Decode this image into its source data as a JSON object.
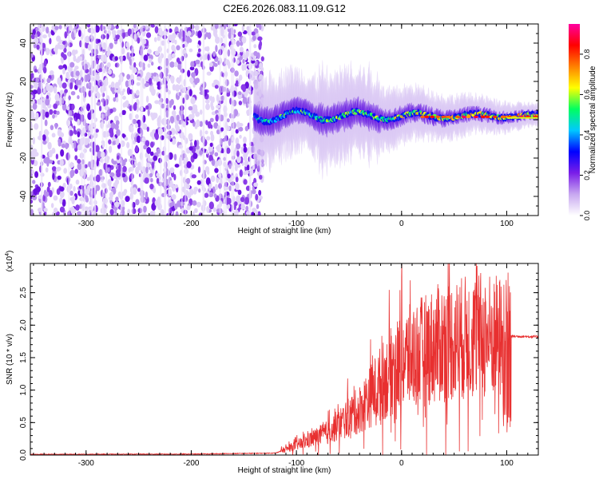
{
  "title": "C2E6.2026.083.11.09.G12",
  "chart_data": [
    {
      "type": "heatmap",
      "name": "spectrogram",
      "xlabel": "Height of straight line (km)",
      "ylabel": "Frequency (Hz)",
      "xlim": [
        -353,
        130
      ],
      "ylim": [
        -50,
        50
      ],
      "xticks": [
        -300,
        -200,
        -100,
        0,
        100
      ],
      "yticks": [
        -40,
        -20,
        0,
        20,
        40
      ],
      "colorbar": {
        "label": "Normalized spectral amplitude",
        "range": [
          0,
          0.95
        ],
        "ticks": [
          0.0,
          0.2,
          0.4,
          0.6,
          0.8
        ],
        "tick_labels": [
          "0.0",
          "0.2",
          "0.4",
          "0.6",
          "0.8"
        ],
        "colormap": [
          "#ffffff",
          "#c8a8f0",
          "#7a1ee8",
          "#0000ff",
          "#00c8ff",
          "#00ff60",
          "#ffff00",
          "#ff8000",
          "#ff0000",
          "#ff00a0"
        ]
      },
      "regions": [
        {
          "from": -353,
          "to": -140,
          "description_level": 0.15,
          "band_hz": [
            -50,
            50
          ]
        },
        {
          "from": -140,
          "to": 130,
          "description_level": 0.5,
          "band_hz": [
            -8,
            12
          ]
        }
      ]
    },
    {
      "type": "line",
      "name": "snr",
      "xlabel": "Height of straight line (km)",
      "ylabel": "SNR (10 * v/v)",
      "multiplier_label": "(x10",
      "multiplier_exp": "4",
      "multiplier_close": ")",
      "xlim": [
        -353,
        130
      ],
      "ylim": [
        0,
        2.95
      ],
      "xticks": [
        -300,
        -200,
        -100,
        0,
        100
      ],
      "yticks": [
        0.0,
        0.5,
        1.0,
        1.5,
        2.0,
        2.5
      ],
      "ytick_labels": [
        "0.0",
        "0.5",
        "1.0",
        "1.5",
        "2.0",
        "2.5"
      ],
      "color": "#e83030",
      "envelope": [
        {
          "x": -353,
          "y": 0.01
        },
        {
          "x": -200,
          "y": 0.015
        },
        {
          "x": -120,
          "y": 0.03
        },
        {
          "x": -100,
          "y": 0.15
        },
        {
          "x": -70,
          "y": 0.35
        },
        {
          "x": -40,
          "y": 0.7
        },
        {
          "x": -20,
          "y": 1.1
        },
        {
          "x": 0,
          "y": 1.45
        },
        {
          "x": 20,
          "y": 1.6
        },
        {
          "x": 40,
          "y": 1.75
        },
        {
          "x": 60,
          "y": 1.8
        },
        {
          "x": 80,
          "y": 1.85
        },
        {
          "x": 95,
          "y": 1.8
        },
        {
          "x": 105,
          "y": 1.83
        },
        {
          "x": 130,
          "y": 1.82
        }
      ]
    }
  ]
}
